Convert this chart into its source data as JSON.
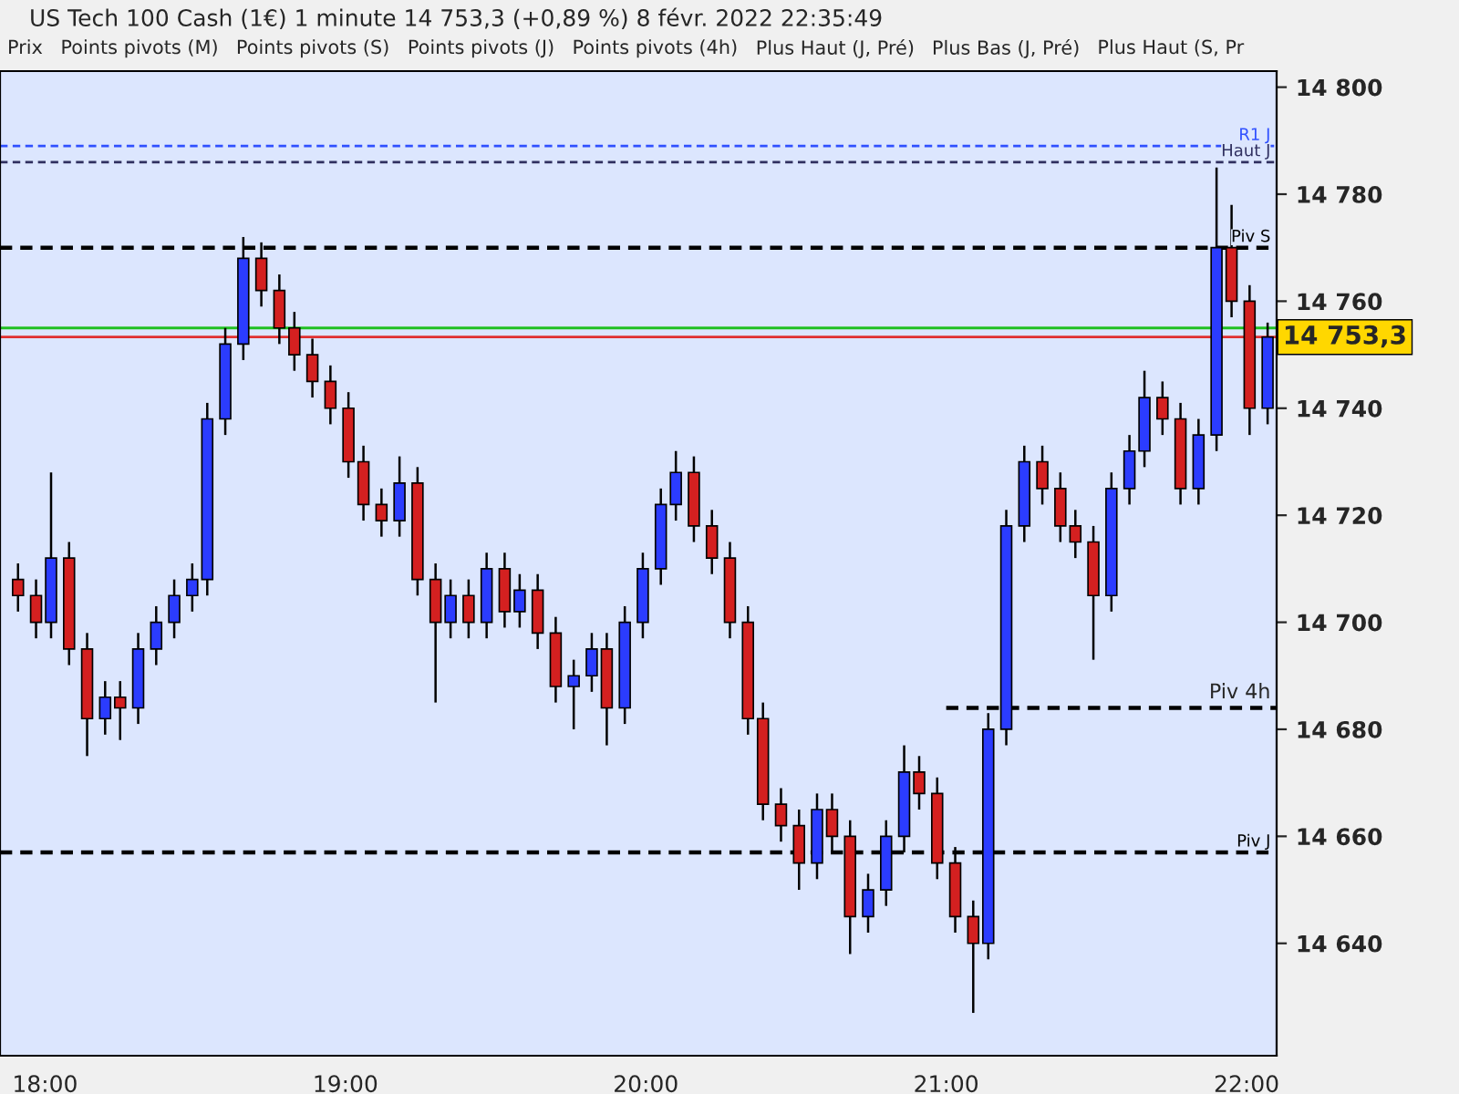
{
  "chart_data": {
    "type": "candlestick",
    "title": "US Tech 100 Cash (1€) 1 minute 14 753,3 (+0,89 %) 8 févr. 2022 22:35:49",
    "annotations": [
      "Prix",
      "Points pivots (M)",
      "Points pivots (S)",
      "Points pivots (J)",
      "Points pivots (4h)",
      "Plus Haut (J, Pré)",
      "Plus Bas (J, Pré)",
      "Plus Haut (S, Pr",
      {
        "text": "14 753,3",
        "x": 22.07,
        "y": 14753.3
      }
    ],
    "colors": [
      "#d42020",
      "#d42020",
      "#2b3cff",
      "#d42020",
      "#d42020",
      "#2b3cff",
      "#d42020",
      "#2b3cff",
      "#2b3cff",
      "#2b3cff",
      "#2b3cff",
      "#2b3cff",
      "#2b3cff",
      "#2b3cff",
      "#d42020",
      "#d42020",
      "#d42020",
      "#d42020",
      "#d42020",
      "#d42020",
      "#d42020",
      "#d42020",
      "#2b3cff",
      "#d42020",
      "#d42020",
      "#2b3cff",
      "#d42020",
      "#2b3cff",
      "#d42020",
      "#2b3cff",
      "#d42020",
      "#d42020",
      "#2b3cff",
      "#2b3cff",
      "#d42020",
      "#2b3cff",
      "#2b3cff",
      "#2b3cff",
      "#2b3cff",
      "#d42020",
      "#d42020",
      "#d42020",
      "#d42020",
      "#d42020",
      "#d42020",
      "#d42020",
      "#2b3cff",
      "#d42020",
      "#d42020",
      "#2b3cff",
      "#2b3cff",
      "#2b3cff",
      "#d42020",
      "#d42020",
      "#d42020",
      "#d42020",
      "#2b3cff",
      "#2b3cff",
      "#2b3cff",
      "#d42020",
      "#d42020",
      "#d42020",
      "#d42020",
      "#2b3cff",
      "#2b3cff",
      "#2b3cff",
      "#d42020",
      "#d42020",
      "#2b3cff",
      "#2b3cff",
      "#d42020",
      "#d42020",
      "#2b3cff"
    ],
    "x": [
      17.91,
      17.97,
      18.02,
      18.08,
      18.14,
      18.2,
      18.25,
      18.31,
      18.37,
      18.43,
      18.49,
      18.54,
      18.6,
      18.66,
      18.72,
      18.78,
      18.83,
      18.89,
      18.95,
      19.01,
      19.06,
      19.12,
      19.18,
      19.24,
      19.3,
      19.35,
      19.41,
      19.47,
      19.53,
      19.58,
      19.64,
      19.7,
      19.76,
      19.82,
      19.87,
      19.93,
      19.99,
      20.05,
      20.1,
      20.16,
      20.22,
      20.28,
      20.34,
      20.39,
      20.45,
      20.51,
      20.57,
      20.62,
      20.68,
      20.74,
      20.8,
      20.86,
      20.91,
      20.97,
      21.03,
      21.09,
      21.14,
      21.2,
      21.26,
      21.32,
      21.38,
      21.43,
      21.49,
      21.55,
      21.61,
      21.66,
      21.72,
      21.78,
      21.84,
      21.9,
      21.95,
      22.01,
      22.07
    ],
    "ohlc": [
      [
        14708,
        14711,
        14702,
        14705
      ],
      [
        14705,
        14708,
        14697,
        14700
      ],
      [
        14700,
        14728,
        14697,
        14712
      ],
      [
        14712,
        14715,
        14692,
        14695
      ],
      [
        14695,
        14698,
        14675,
        14682
      ],
      [
        14682,
        14689,
        14679,
        14686
      ],
      [
        14686,
        14689,
        14678,
        14684
      ],
      [
        14684,
        14698,
        14681,
        14695
      ],
      [
        14695,
        14703,
        14692,
        14700
      ],
      [
        14700,
        14708,
        14697,
        14705
      ],
      [
        14705,
        14711,
        14702,
        14708
      ],
      [
        14708,
        14741,
        14705,
        14738
      ],
      [
        14738,
        14755,
        14735,
        14752
      ],
      [
        14752,
        14772,
        14749,
        14768
      ],
      [
        14768,
        14771,
        14759,
        14762
      ],
      [
        14762,
        14765,
        14752,
        14755
      ],
      [
        14755,
        14758,
        14747,
        14750
      ],
      [
        14750,
        14753,
        14742,
        14745
      ],
      [
        14745,
        14748,
        14737,
        14740
      ],
      [
        14740,
        14743,
        14727,
        14730
      ],
      [
        14730,
        14733,
        14719,
        14722
      ],
      [
        14722,
        14725,
        14716,
        14719
      ],
      [
        14719,
        14731,
        14716,
        14726
      ],
      [
        14726,
        14729,
        14705,
        14708
      ],
      [
        14708,
        14711,
        14685,
        14700
      ],
      [
        14700,
        14708,
        14697,
        14705
      ],
      [
        14705,
        14708,
        14697,
        14700
      ],
      [
        14700,
        14713,
        14697,
        14710
      ],
      [
        14710,
        14713,
        14699,
        14702
      ],
      [
        14702,
        14709,
        14699,
        14706
      ],
      [
        14706,
        14709,
        14695,
        14698
      ],
      [
        14698,
        14701,
        14685,
        14688
      ],
      [
        14688,
        14693,
        14680,
        14690
      ],
      [
        14690,
        14698,
        14687,
        14695
      ],
      [
        14695,
        14698,
        14677,
        14684
      ],
      [
        14684,
        14703,
        14681,
        14700
      ],
      [
        14700,
        14713,
        14697,
        14710
      ],
      [
        14710,
        14725,
        14707,
        14722
      ],
      [
        14722,
        14732,
        14719,
        14728
      ],
      [
        14728,
        14731,
        14715,
        14718
      ],
      [
        14718,
        14721,
        14709,
        14712
      ],
      [
        14712,
        14715,
        14697,
        14700
      ],
      [
        14700,
        14703,
        14679,
        14682
      ],
      [
        14682,
        14685,
        14663,
        14666
      ],
      [
        14666,
        14669,
        14659,
        14662
      ],
      [
        14662,
        14665,
        14650,
        14655
      ],
      [
        14655,
        14668,
        14652,
        14665
      ],
      [
        14665,
        14668,
        14657,
        14660
      ],
      [
        14660,
        14663,
        14638,
        14645
      ],
      [
        14645,
        14653,
        14642,
        14650
      ],
      [
        14650,
        14663,
        14647,
        14660
      ],
      [
        14660,
        14677,
        14657,
        14672
      ],
      [
        14672,
        14675,
        14665,
        14668
      ],
      [
        14668,
        14671,
        14652,
        14655
      ],
      [
        14655,
        14658,
        14642,
        14645
      ],
      [
        14645,
        14648,
        14627,
        14640
      ],
      [
        14640,
        14683,
        14637,
        14680
      ],
      [
        14680,
        14721,
        14677,
        14718
      ],
      [
        14718,
        14733,
        14715,
        14730
      ],
      [
        14730,
        14733,
        14722,
        14725
      ],
      [
        14725,
        14728,
        14715,
        14718
      ],
      [
        14718,
        14721,
        14712,
        14715
      ],
      [
        14715,
        14718,
        14693,
        14705
      ],
      [
        14705,
        14728,
        14702,
        14725
      ],
      [
        14725,
        14735,
        14722,
        14732
      ],
      [
        14732,
        14747,
        14729,
        14742
      ],
      [
        14742,
        14745,
        14735,
        14738
      ],
      [
        14738,
        14741,
        14722,
        14725
      ],
      [
        14725,
        14738,
        14722,
        14735
      ],
      [
        14735,
        14785,
        14732,
        14770
      ],
      [
        14770,
        14778,
        14757,
        14760
      ],
      [
        14760,
        14763,
        14735,
        14740
      ],
      [
        14740,
        14756,
        14737,
        14753.3
      ]
    ],
    "series": [
      {
        "name": "Piv 4h",
        "type": "line",
        "x": [
          21.0,
          22.1
        ],
        "values": [
          14684,
          14684
        ],
        "color": "#000000",
        "line_style": "dashed"
      }
    ],
    "ref_lines": [
      {
        "axis": "y",
        "value": 14789,
        "label": "R1 J",
        "color": "#3050ff",
        "line_style": "dashed"
      },
      {
        "axis": "y",
        "value": 14786,
        "label": "Haut J",
        "color": "#303060",
        "line_style": "dashed"
      },
      {
        "axis": "y",
        "value": 14770,
        "label": "Piv S",
        "color": "#000000",
        "line_style": "dashed"
      },
      {
        "axis": "y",
        "value": 14657,
        "label": "Piv J",
        "color": "#000000",
        "line_style": "dashed"
      },
      {
        "axis": "y",
        "value": 14755,
        "color": "#20c020",
        "line_style": "solid"
      },
      {
        "axis": "y",
        "value": 14753.3,
        "color": "#e03030",
        "line_style": "solid"
      }
    ],
    "xlim": [
      17.85,
      22.1
    ],
    "xticks": [
      {
        "value": 18,
        "label": "18:00"
      },
      {
        "value": 19,
        "label": "19:00"
      },
      {
        "value": 20,
        "label": "20:00"
      },
      {
        "value": 21,
        "label": "21:00"
      },
      {
        "value": 22,
        "label": "22:00"
      }
    ],
    "ylim": [
      14619,
      14803
    ],
    "yticks": [
      {
        "value": 14640,
        "label": "14 640"
      },
      {
        "value": 14660,
        "label": "14 660"
      },
      {
        "value": 14680,
        "label": "14 680"
      },
      {
        "value": 14700,
        "label": "14 700"
      },
      {
        "value": 14720,
        "label": "14 720"
      },
      {
        "value": 14740,
        "label": "14 740"
      },
      {
        "value": 14760,
        "label": "14 760"
      },
      {
        "value": 14780,
        "label": "14 780"
      },
      {
        "value": 14800,
        "label": "14 800"
      }
    ],
    "grid": false,
    "legend": false
  }
}
